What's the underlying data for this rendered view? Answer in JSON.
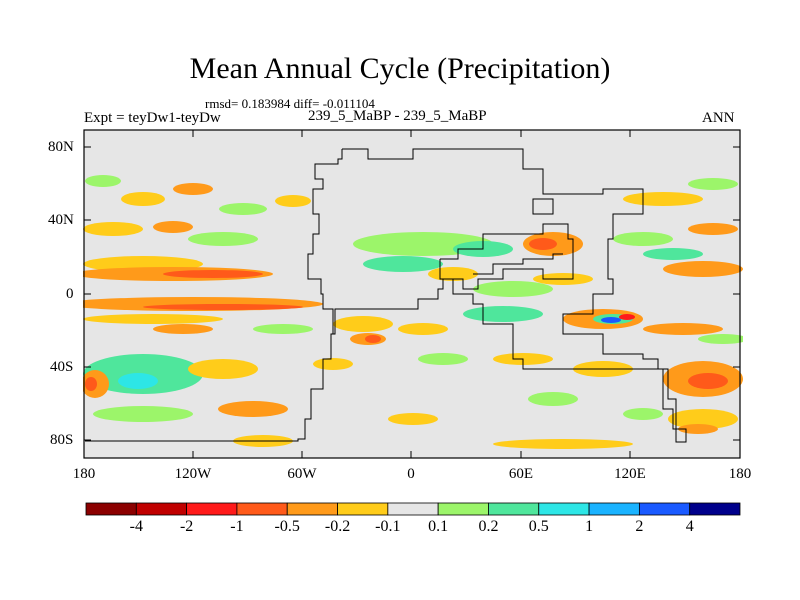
{
  "title": "Mean Annual Cycle (Precipitation)",
  "stats_text": "rmsd= 0.183984 diff= -0.011104",
  "left_label": "Expt = teyDw1-teyDw",
  "center_label": "239_5_MaBP - 239_5_MaBP",
  "right_label": "ANN",
  "lat_ticks": [
    "80N",
    "40N",
    "0",
    "40S",
    "80S"
  ],
  "lon_ticks": [
    "180",
    "120W",
    "60W",
    "0",
    "60E",
    "120E",
    "180"
  ],
  "colorbar": {
    "colors": [
      "#8b0000",
      "#c00000",
      "#ff1a1a",
      "#ff5a1a",
      "#ff9a1a",
      "#ffcc1a",
      "#e6e6e6",
      "#9cf56a",
      "#4fe69c",
      "#2de6e6",
      "#1ab3ff",
      "#1a5aff",
      "#00008b"
    ],
    "labels": [
      "-4",
      "-2",
      "-1",
      "-0.5",
      "-0.2",
      "-0.1",
      "0.1",
      "0.2",
      "0.5",
      "1",
      "2",
      "4"
    ]
  },
  "map_colors": {
    "background": "#e6e6e6",
    "outline": "#000000"
  }
}
